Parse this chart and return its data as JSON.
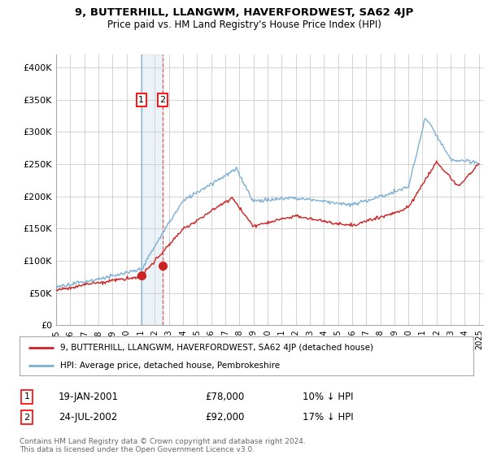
{
  "title": "9, BUTTERHILL, LLANGWM, HAVERFORDWEST, SA62 4JP",
  "subtitle": "Price paid vs. HM Land Registry's House Price Index (HPI)",
  "ylim": [
    0,
    420000
  ],
  "yticks": [
    0,
    50000,
    100000,
    150000,
    200000,
    250000,
    300000,
    350000,
    400000
  ],
  "ytick_labels": [
    "£0",
    "£50K",
    "£100K",
    "£150K",
    "£200K",
    "£250K",
    "£300K",
    "£350K",
    "£400K"
  ],
  "hpi_color": "#7bafd4",
  "price_color": "#cc2222",
  "sale1_x": 2001.05,
  "sale1_y": 78000,
  "sale2_x": 2002.56,
  "sale2_y": 92000,
  "grid_color": "#cccccc",
  "background_color": "#ffffff",
  "legend_label_red": "9, BUTTERHILL, LLANGWM, HAVERFORDWEST, SA62 4JP (detached house)",
  "legend_label_blue": "HPI: Average price, detached house, Pembrokeshire",
  "footer": "Contains HM Land Registry data © Crown copyright and database right 2024.\nThis data is licensed under the Open Government Licence v3.0.",
  "table_rows": [
    {
      "num": "1",
      "date": "19-JAN-2001",
      "price": "£78,000",
      "pct": "10% ↓ HPI"
    },
    {
      "num": "2",
      "date": "24-JUL-2002",
      "price": "£92,000",
      "pct": "17% ↓ HPI"
    }
  ],
  "xmin": 1995,
  "xmax": 2025
}
